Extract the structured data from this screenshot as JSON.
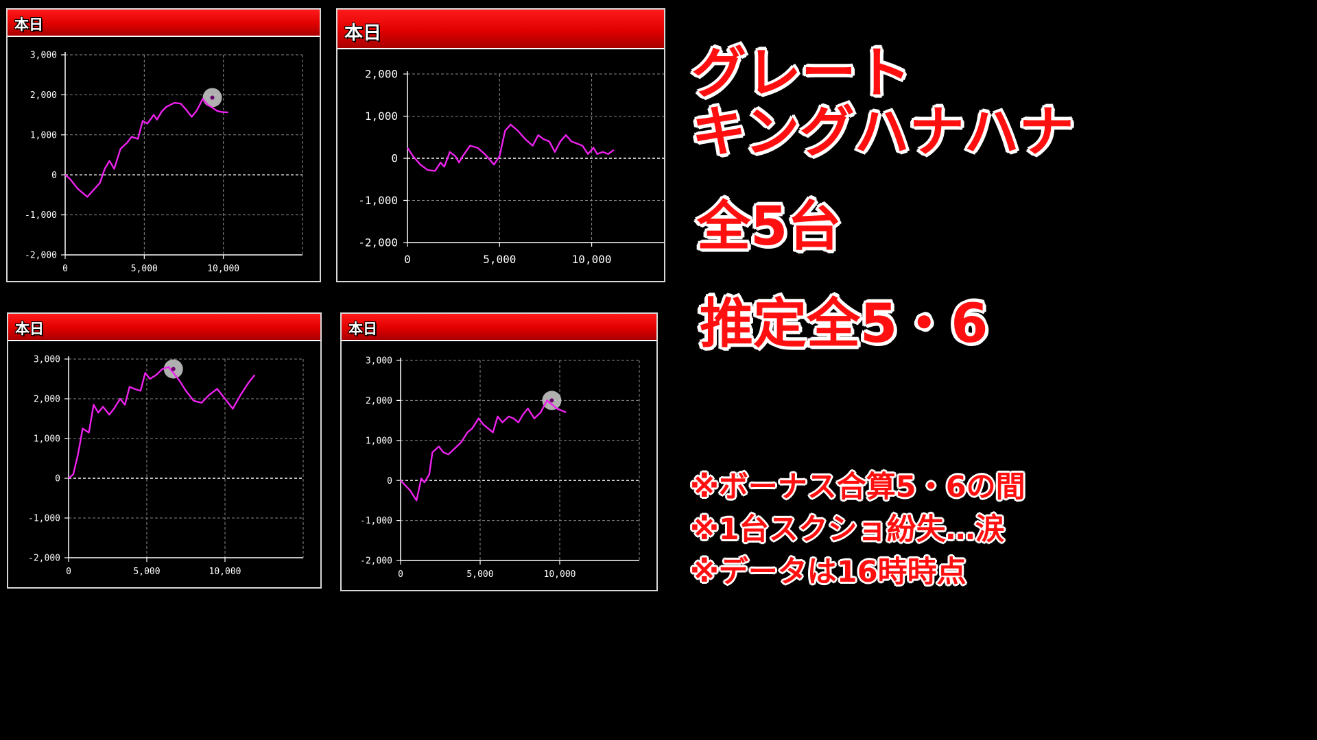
{
  "title_lines": [
    "グレート",
    "キングハナハナ"
  ],
  "headline_count": "全5台",
  "headline_estimate": "推定全5・6",
  "notes": [
    "※ボーナス合算5・6の間",
    "※1台スクショ紛失…涙",
    "※データは16時時点"
  ],
  "colors": {
    "line": "#ee22ee",
    "header": "#e00000",
    "text_red": "#ff1010",
    "marker": "#cfcfcf"
  },
  "chart_data": [
    {
      "type": "line",
      "header": "本日",
      "ylim": [
        -2000,
        3000
      ],
      "xlim": [
        0,
        15000
      ],
      "yticks": [
        3000,
        2000,
        1000,
        0,
        -1000,
        -2000
      ],
      "ytick_labels": [
        "3,000",
        "2,000",
        "1,000",
        "0",
        "-1,000",
        "-2,000"
      ],
      "xticks": [
        0,
        5000,
        10000
      ],
      "xtick_labels": [
        "0",
        "5,000",
        "10,000"
      ],
      "grid": true,
      "x": [
        0,
        300,
        800,
        1400,
        1700,
        2200,
        2500,
        2800,
        3100,
        3500,
        3900,
        4200,
        4600,
        4900,
        5200,
        5600,
        5800,
        6100,
        6400,
        6900,
        7300,
        7600,
        8000,
        8300,
        8700,
        9000,
        9300,
        9600,
        9900,
        10300
      ],
      "y": [
        0,
        -100,
        -350,
        -550,
        -420,
        -200,
        150,
        350,
        150,
        650,
        800,
        950,
        900,
        1350,
        1280,
        1500,
        1380,
        1580,
        1700,
        1800,
        1780,
        1650,
        1450,
        1600,
        1900,
        1750,
        1680,
        1600,
        1570,
        1560
      ],
      "marker": {
        "x": 9300,
        "y": 1930
      }
    },
    {
      "type": "line",
      "header": "本日",
      "ylim": [
        -2000,
        2000
      ],
      "xlim": [
        0,
        14000
      ],
      "yticks": [
        2000,
        1000,
        0,
        -1000,
        -2000
      ],
      "ytick_labels": [
        "2,000",
        "1,000",
        "0",
        "-1,000",
        "-2,000"
      ],
      "xticks": [
        0,
        5000,
        10000
      ],
      "xtick_labels": [
        "0",
        "5,000",
        "10,000"
      ],
      "grid": true,
      "x": [
        0,
        300,
        700,
        1100,
        1500,
        1800,
        2000,
        2300,
        2600,
        2800,
        3000,
        3400,
        3800,
        4200,
        4700,
        5000,
        5300,
        5600,
        6000,
        6400,
        6800,
        7100,
        7400,
        7700,
        8000,
        8300,
        8600,
        8900,
        9200,
        9500,
        9800,
        10100,
        10300,
        10600,
        10900,
        11200
      ],
      "y": [
        250,
        50,
        -150,
        -280,
        -300,
        -100,
        -200,
        150,
        50,
        -100,
        50,
        300,
        250,
        100,
        -150,
        50,
        650,
        800,
        650,
        450,
        300,
        550,
        450,
        400,
        150,
        400,
        550,
        400,
        350,
        300,
        100,
        250,
        100,
        150,
        100,
        200
      ]
    },
    {
      "type": "line",
      "header": "本日",
      "ylim": [
        -2000,
        3000
      ],
      "xlim": [
        0,
        15000
      ],
      "yticks": [
        3000,
        2000,
        1000,
        0,
        -1000,
        -2000
      ],
      "ytick_labels": [
        "3,000",
        "2,000",
        "1,000",
        "0",
        "-1,000",
        "-2,000"
      ],
      "xticks": [
        0,
        5000,
        10000
      ],
      "xtick_labels": [
        "0",
        "5,000",
        "10,000"
      ],
      "grid": true,
      "x": [
        0,
        300,
        600,
        900,
        1300,
        1600,
        1900,
        2200,
        2600,
        2900,
        3300,
        3600,
        3900,
        4200,
        4600,
        4900,
        5200,
        5600,
        6000,
        6400,
        6700,
        7100,
        7500,
        8000,
        8500,
        9000,
        9500,
        10000,
        10500,
        11000,
        11500,
        11900
      ],
      "y": [
        0,
        100,
        600,
        1250,
        1150,
        1850,
        1650,
        1800,
        1600,
        1750,
        2000,
        1850,
        2300,
        2250,
        2200,
        2650,
        2500,
        2600,
        2750,
        2800,
        2650,
        2450,
        2200,
        1950,
        1900,
        2100,
        2250,
        2000,
        1750,
        2100,
        2400,
        2600
      ],
      "marker": {
        "x": 6700,
        "y": 2750
      }
    },
    {
      "type": "line",
      "header": "本日",
      "ylim": [
        -2000,
        3000
      ],
      "xlim": [
        0,
        15000
      ],
      "yticks": [
        3000,
        2000,
        1000,
        0,
        -1000,
        -2000
      ],
      "ytick_labels": [
        "3,000",
        "2,000",
        "1,000",
        "0",
        "-1,000",
        "-2,000"
      ],
      "xticks": [
        0,
        5000,
        10000
      ],
      "xtick_labels": [
        "0",
        "5,000",
        "10,000"
      ],
      "grid": true,
      "x": [
        0,
        600,
        1000,
        1300,
        1500,
        1800,
        2000,
        2400,
        2700,
        3000,
        3400,
        3800,
        4200,
        4500,
        4900,
        5200,
        5500,
        5800,
        6100,
        6400,
        6800,
        7100,
        7400,
        7700,
        8000,
        8400,
        8800,
        9200,
        9500,
        9800,
        10100,
        10400
      ],
      "y": [
        0,
        -250,
        -500,
        50,
        -50,
        150,
        700,
        850,
        700,
        650,
        800,
        950,
        1200,
        1300,
        1550,
        1400,
        1300,
        1200,
        1600,
        1450,
        1600,
        1550,
        1450,
        1650,
        1800,
        1550,
        1700,
        2000,
        1900,
        1800,
        1750,
        1700
      ],
      "marker": {
        "x": 9500,
        "y": 2000
      }
    }
  ]
}
